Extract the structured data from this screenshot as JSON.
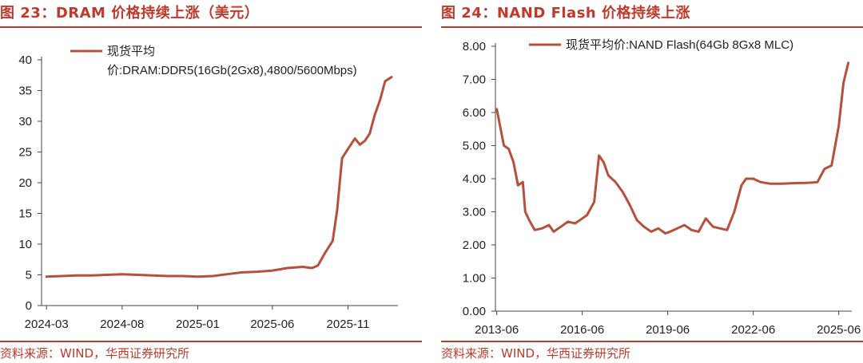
{
  "colors": {
    "accent": "#c0392b",
    "line": "#b5503b",
    "axis": "#444444"
  },
  "charts": [
    {
      "title": "图 23：DRAM 价格持续上涨（美元）",
      "source": "资料来源：WIND，华西证券研究所",
      "chart_data": {
        "type": "line",
        "legend_lines": [
          "现货平均",
          "价:DRAM:DDR5(16Gb(2Gx8),4800/5600Mbps)"
        ],
        "legend_position": "top-left",
        "grid": false,
        "ylim": [
          0,
          40
        ],
        "yticks": [
          "0",
          "5",
          "10",
          "15",
          "20",
          "25",
          "30",
          "35",
          "40"
        ],
        "xticks": [
          "2024-03",
          "2024-08",
          "2025-01",
          "2025-06",
          "2025-11"
        ],
        "series": [
          {
            "x": [
              "2024-03-01",
              "2024-04-01",
              "2024-05-01",
              "2024-06-01",
              "2024-07-01",
              "2024-08-01",
              "2024-09-01",
              "2024-10-01",
              "2024-11-01",
              "2024-12-01",
              "2025-01-01",
              "2025-02-01",
              "2025-03-01",
              "2025-04-01",
              "2025-05-01",
              "2025-06-01",
              "2025-07-01",
              "2025-08-01",
              "2025-08-20",
              "2025-09-01",
              "2025-09-15",
              "2025-10-01",
              "2025-10-10",
              "2025-10-20",
              "2025-11-01",
              "2025-11-15",
              "2025-11-25",
              "2025-12-05",
              "2025-12-15",
              "2025-12-25",
              "2026-01-05",
              "2026-01-15",
              "2026-01-28"
            ],
            "values": [
              4.7,
              4.8,
              4.9,
              4.9,
              5.0,
              5.1,
              5.0,
              4.9,
              4.8,
              4.8,
              4.7,
              4.8,
              5.1,
              5.4,
              5.5,
              5.7,
              6.1,
              6.3,
              6.1,
              6.5,
              8.5,
              10.5,
              15.5,
              24.0,
              25.5,
              27.2,
              26.2,
              26.8,
              28.0,
              31.0,
              33.5,
              36.5,
              37.2
            ]
          }
        ]
      }
    },
    {
      "title": "图 24：NAND Flash 价格持续上涨",
      "source": "资料来源：WIND，华西证券研究所",
      "chart_data": {
        "type": "line",
        "legend_lines": [
          "现货平均价:NAND Flash(64Gb 8Gx8 MLC)"
        ],
        "legend_position": "top",
        "grid": false,
        "ylim": [
          0,
          8
        ],
        "yticks": [
          "0.00",
          "1.00",
          "2.00",
          "3.00",
          "4.00",
          "5.00",
          "6.00",
          "7.00",
          "8.00"
        ],
        "xticks": [
          "2013-06",
          "2016-06",
          "2019-06",
          "2022-06",
          "2025-06"
        ],
        "series": [
          {
            "x": [
              "2013-06-01",
              "2013-09-01",
              "2013-11-01",
              "2014-01-01",
              "2014-03-01",
              "2014-05-01",
              "2014-06-01",
              "2014-08-01",
              "2014-10-01",
              "2015-01-01",
              "2015-04-01",
              "2015-06-01",
              "2015-09-01",
              "2015-12-01",
              "2016-03-01",
              "2016-06-01",
              "2016-08-01",
              "2016-11-01",
              "2017-01-01",
              "2017-03-01",
              "2017-05-01",
              "2017-08-01",
              "2017-11-01",
              "2018-02-01",
              "2018-05-01",
              "2018-08-01",
              "2018-11-01",
              "2019-02-01",
              "2019-05-01",
              "2019-07-01",
              "2019-10-01",
              "2020-01-01",
              "2020-04-01",
              "2020-07-01",
              "2020-10-01",
              "2021-01-01",
              "2021-04-01",
              "2021-07-01",
              "2021-10-01",
              "2022-01-01",
              "2022-03-01",
              "2022-06-01",
              "2022-09-01",
              "2023-01-01",
              "2023-06-01",
              "2024-01-01",
              "2024-03-01",
              "2024-06-01",
              "2024-09-01",
              "2024-12-01",
              "2025-03-01",
              "2025-06-01",
              "2025-08-01",
              "2025-10-01"
            ],
            "values": [
              6.1,
              5.0,
              4.9,
              4.5,
              3.8,
              3.9,
              3.0,
              2.7,
              2.45,
              2.5,
              2.6,
              2.4,
              2.55,
              2.7,
              2.65,
              2.8,
              2.9,
              3.3,
              4.7,
              4.5,
              4.1,
              3.9,
              3.6,
              3.2,
              2.75,
              2.55,
              2.4,
              2.5,
              2.35,
              2.4,
              2.5,
              2.6,
              2.45,
              2.4,
              2.8,
              2.55,
              2.5,
              2.45,
              3.0,
              3.8,
              4.0,
              4.0,
              3.9,
              3.85,
              3.85,
              3.87,
              3.87,
              3.88,
              3.9,
              4.3,
              4.4,
              5.6,
              6.9,
              7.5
            ]
          }
        ]
      }
    }
  ]
}
